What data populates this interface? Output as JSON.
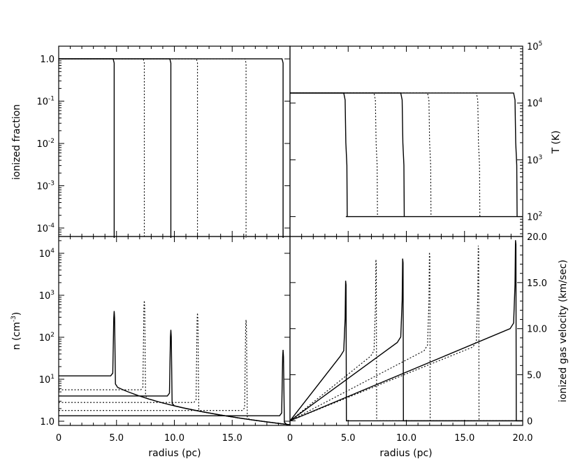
{
  "chart_data": [
    {
      "panel": "top-left",
      "type": "line",
      "ylabel": "ionized fraction",
      "xlim": [
        0,
        20
      ],
      "ylim_log10": [
        -4.2,
        0.3
      ],
      "yscale": "log",
      "y_ticks": [
        {
          "label": "1.0",
          "exp": ""
        },
        {
          "label": "10",
          "exp": "-1"
        },
        {
          "label": "10",
          "exp": "-2"
        },
        {
          "label": "10",
          "exp": "-3"
        },
        {
          "label": "10",
          "exp": "-4"
        }
      ],
      "series": [
        {
          "style": "solid",
          "front_pc": 4.8
        },
        {
          "style": "dotted",
          "front_pc": 7.4
        },
        {
          "style": "solid",
          "front_pc": 9.7
        },
        {
          "style": "dotted",
          "front_pc": 12.0
        },
        {
          "style": "dotted",
          "front_pc": 16.2
        },
        {
          "style": "solid",
          "front_pc": 19.4
        }
      ]
    },
    {
      "panel": "top-right",
      "type": "line",
      "ylabel": "T (K)",
      "xlim": [
        0,
        20
      ],
      "ylim_log10": [
        1.65,
        5.0
      ],
      "yscale": "log",
      "y_ticks": [
        {
          "label": "10",
          "exp": "5"
        },
        {
          "label": "10",
          "exp": "4"
        },
        {
          "label": "10",
          "exp": "3"
        },
        {
          "label": "10",
          "exp": "2"
        }
      ],
      "ionized_T": 15000,
      "neutral_T": 100,
      "series": [
        {
          "style": "solid",
          "front_pc": 4.8
        },
        {
          "style": "dotted",
          "front_pc": 7.4
        },
        {
          "style": "solid",
          "front_pc": 9.7
        },
        {
          "style": "dotted",
          "front_pc": 12.0
        },
        {
          "style": "dotted",
          "front_pc": 16.2
        },
        {
          "style": "solid",
          "front_pc": 19.4
        }
      ]
    },
    {
      "panel": "bottom-left",
      "type": "line",
      "xlabel": "radius (pc)",
      "ylabel": "n (cm",
      "ylabel_exp": "-3",
      "ylabel_tail": ")",
      "xlim": [
        0,
        20
      ],
      "ylim_log10": [
        -0.1,
        4.4
      ],
      "yscale": "log",
      "x_ticks": [
        "0",
        "5.0",
        "10.0",
        "15.0"
      ],
      "y_ticks": [
        {
          "label": "10",
          "exp": "4"
        },
        {
          "label": "10",
          "exp": "3"
        },
        {
          "label": "10",
          "exp": "2"
        },
        {
          "label": "10",
          "exp": "1"
        },
        {
          "label": "1.0",
          "exp": ""
        }
      ],
      "series": [
        {
          "style": "solid",
          "front_pc": 4.8,
          "n_inside": 12.0,
          "n_peak": 420
        },
        {
          "style": "dotted",
          "front_pc": 7.4,
          "n_inside": 5.6,
          "n_peak": 750
        },
        {
          "style": "solid",
          "front_pc": 9.7,
          "n_inside": 4.0,
          "n_peak": 150
        },
        {
          "style": "dotted",
          "front_pc": 12.0,
          "n_inside": 2.8,
          "n_peak": 380
        },
        {
          "style": "dotted",
          "front_pc": 16.2,
          "n_inside": 1.8,
          "n_peak": 260
        },
        {
          "style": "solid",
          "front_pc": 19.4,
          "n_inside": 1.35,
          "n_peak": 50
        }
      ]
    },
    {
      "panel": "bottom-right",
      "type": "line",
      "xlabel": "radius (pc)",
      "ylabel": "ionized gas velocity (km/sec)",
      "xlim": [
        0,
        20
      ],
      "ylim": [
        -0.5,
        20
      ],
      "x_ticks": [
        "0",
        "5.0",
        "10.0",
        "15.0",
        "20.0"
      ],
      "y_ticks": [
        "20.0",
        "15.0",
        "10.0",
        "5.0",
        "0"
      ],
      "series": [
        {
          "style": "solid",
          "front_pc": 4.8,
          "v_front": 7.0,
          "v_peak": 15.2
        },
        {
          "style": "dotted",
          "front_pc": 7.4,
          "v_front": 7.0,
          "v_peak": 17.5
        },
        {
          "style": "solid",
          "front_pc": 9.7,
          "v_front": 8.5,
          "v_peak": 17.6
        },
        {
          "style": "dotted",
          "front_pc": 12.0,
          "v_front": 7.6,
          "v_peak": 18.3
        },
        {
          "style": "dotted",
          "front_pc": 16.2,
          "v_front": 8.0,
          "v_peak": 19.0
        },
        {
          "style": "solid",
          "front_pc": 19.4,
          "v_front": 10.0,
          "v_peak": 19.6
        }
      ]
    }
  ]
}
